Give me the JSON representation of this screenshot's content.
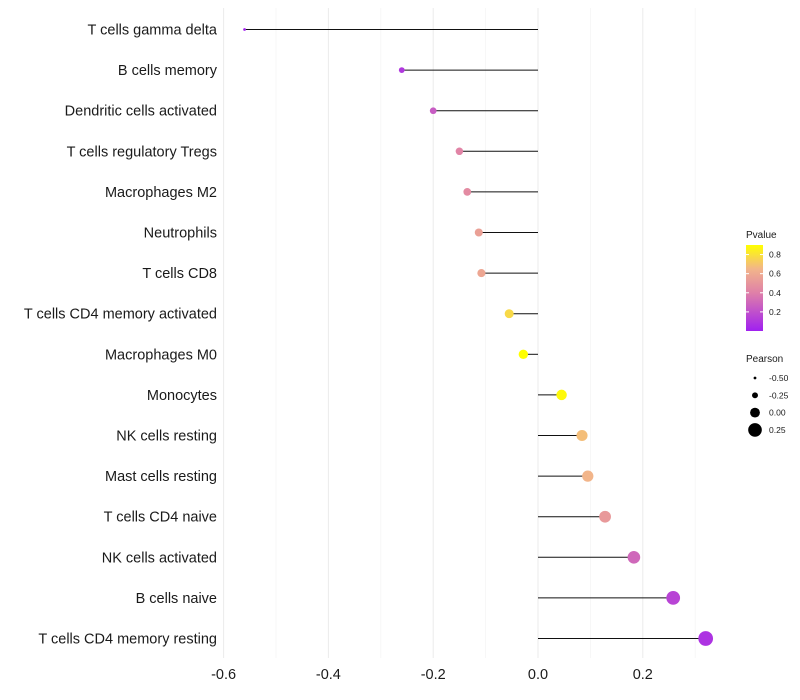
{
  "chart_data": {
    "type": "lollipop",
    "title": "",
    "xlabel": "",
    "ylabel": "",
    "xlim": [
      -0.6,
      0.32
    ],
    "x_ticks": [
      -0.6,
      -0.4,
      -0.2,
      0.0,
      0.2
    ],
    "x_tick_labels": [
      "-0.6",
      "-0.4",
      "-0.2",
      "0.0",
      "0.2"
    ],
    "categories": [
      "T cells gamma delta",
      "B cells memory",
      "Dendritic cells activated",
      "T cells regulatory  Tregs ",
      "Macrophages M2",
      "Neutrophils",
      "T cells CD8",
      "T cells CD4 memory activated",
      "Macrophages M0",
      "Monocytes",
      "NK cells resting",
      "Mast cells resting",
      "T cells CD4 naive",
      "NK cells activated",
      "B cells naive",
      "T cells CD4 memory resting"
    ],
    "pearson": [
      -0.56,
      -0.26,
      -0.2,
      -0.15,
      -0.135,
      -0.113,
      -0.108,
      -0.055,
      -0.028,
      0.045,
      0.084,
      0.095,
      0.128,
      0.183,
      0.258,
      0.32
    ],
    "pvalue": [
      0.02,
      0.1,
      0.25,
      0.42,
      0.45,
      0.55,
      0.58,
      0.77,
      0.9,
      0.88,
      0.68,
      0.65,
      0.52,
      0.3,
      0.15,
      0.08
    ],
    "color_legend": {
      "title": "Pvalue",
      "ticks": [
        0.8,
        0.6,
        0.4,
        0.2
      ],
      "tick_labels": [
        "0.8",
        "0.6",
        "0.4",
        "0.2"
      ],
      "range": [
        0.0,
        0.9
      ],
      "colors": [
        "#a020f0",
        "#df80a8",
        "#f2b58a",
        "#ffff00"
      ]
    },
    "size_legend": {
      "title": "Pearson",
      "values": [
        -0.5,
        -0.25,
        0.0,
        0.25
      ],
      "labels": [
        "-0.50",
        "-0.25",
        "0.00",
        "0.25"
      ]
    },
    "gridlines": "vertical"
  }
}
